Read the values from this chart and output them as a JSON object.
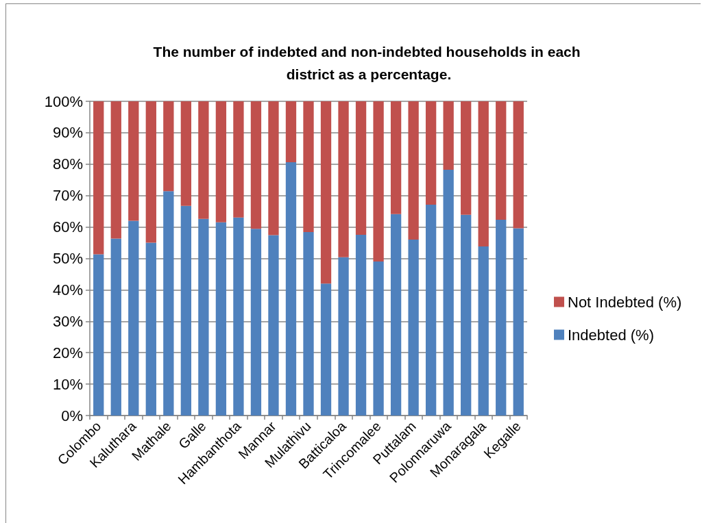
{
  "chart_data": {
    "type": "bar",
    "title": "The number of indebted and non-indebted households in each district as a percentage.",
    "categories": [
      "Colombo",
      null,
      "Kaluthara",
      null,
      "Mathale",
      null,
      "Galle",
      null,
      "Hambanthota",
      null,
      "Mannar",
      null,
      "Mulathivu",
      null,
      "Batticaloa",
      null,
      "Trincomalee",
      null,
      "Puttalam",
      null,
      "Polonnaruwa",
      null,
      "Monaragala",
      null,
      "Kegalle"
    ],
    "series": [
      {
        "name": "Indebted (%)",
        "color": "#4f81bd",
        "values": [
          51.3,
          56.3,
          62.0,
          55.0,
          71.4,
          66.7,
          62.6,
          61.5,
          63.0,
          59.4,
          57.4,
          80.6,
          58.4,
          42.0,
          50.4,
          57.5,
          49.0,
          64.1,
          56.0,
          67.1,
          78.2,
          63.9,
          53.8,
          62.3,
          59.6
        ]
      },
      {
        "name": "Not Indebted (%)",
        "color": "#c0504d",
        "values": [
          48.7,
          43.7,
          38.0,
          45.0,
          28.6,
          33.3,
          37.4,
          38.5,
          37.0,
          40.6,
          42.6,
          19.4,
          41.6,
          58.0,
          49.6,
          42.5,
          51.0,
          35.9,
          44.0,
          32.9,
          21.8,
          36.1,
          46.2,
          37.7,
          40.4
        ]
      }
    ],
    "stacked": true,
    "ylim": [
      0,
      100
    ],
    "yticks": [
      {
        "value": 0,
        "label": "0%"
      },
      {
        "value": 10,
        "label": "10%"
      },
      {
        "value": 20,
        "label": "20%"
      },
      {
        "value": 30,
        "label": "30%"
      },
      {
        "value": 40,
        "label": "40%"
      },
      {
        "value": 50,
        "label": "50%"
      },
      {
        "value": 60,
        "label": "60%"
      },
      {
        "value": 70,
        "label": "70%"
      },
      {
        "value": 80,
        "label": "80%"
      },
      {
        "value": 90,
        "label": "90%"
      },
      {
        "value": 100,
        "label": "100%"
      }
    ],
    "grid": "y",
    "legend": "right"
  }
}
